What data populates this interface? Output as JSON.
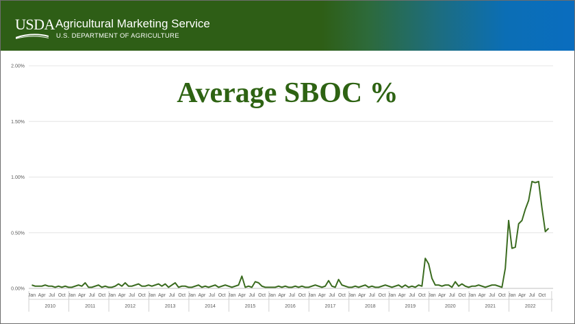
{
  "header": {
    "logo_text": "USDA",
    "agency": "Agricultural Marketing Service",
    "department": "U.S. DEPARTMENT OF AGRICULTURE"
  },
  "colors": {
    "brand_green": "#2e5e16",
    "brand_blue": "#0a6dbf",
    "line": "#3a6b1f",
    "title": "#2e6313"
  },
  "chart_data": {
    "type": "line",
    "title": "Average SBOC %",
    "xlabel": "",
    "ylabel": "",
    "ylim": [
      0,
      0.02
    ],
    "yticks": [
      "0.00%",
      "0.50%",
      "1.00%",
      "1.50%",
      "2.00%"
    ],
    "grid": true,
    "legend": "none",
    "month_ticks": [
      "Jan",
      "Apr",
      "Jul",
      "Oct"
    ],
    "years": [
      "2010",
      "2011",
      "2012",
      "2013",
      "2014",
      "2015",
      "2016",
      "2017",
      "2018",
      "2019",
      "2020",
      "2021",
      "2022"
    ],
    "series": [
      {
        "values": [
          0.0003,
          0.0002,
          0.0002,
          0.0002,
          0.0003,
          0.0002,
          0.0002,
          0.0001,
          0.0002,
          0.0001,
          0.0002,
          0.0001,
          0.0001,
          0.0002,
          0.0003,
          0.0002,
          0.0005,
          0.0001,
          0.0001,
          0.0002,
          0.0003,
          0.0001,
          0.0002,
          0.0001,
          0.0001,
          0.0002,
          0.0004,
          0.0002,
          0.0005,
          0.0002,
          0.0002,
          0.0003,
          0.0004,
          0.0002,
          0.0002,
          0.0003,
          0.0002,
          0.0003,
          0.0004,
          0.0002,
          0.0004,
          0.0001,
          0.0003,
          0.0005,
          0.0001,
          0.0002,
          0.0002,
          0.0001,
          0.0001,
          0.0002,
          0.0003,
          0.0001,
          0.0002,
          0.0001,
          0.0002,
          0.0003,
          0.0001,
          0.0002,
          0.0003,
          0.0002,
          0.0001,
          0.0002,
          0.0003,
          0.0011,
          0.0001,
          0.0002,
          0.0001,
          0.0006,
          0.0005,
          0.0002,
          0.0001,
          0.0001,
          0.0001,
          0.0001,
          0.0002,
          0.0001,
          0.0002,
          0.0001,
          0.0001,
          0.0002,
          0.0001,
          0.0002,
          0.0001,
          0.0001,
          0.0002,
          0.0003,
          0.0002,
          0.0001,
          0.0002,
          0.0007,
          0.0002,
          0.0001,
          0.0008,
          0.0003,
          0.0002,
          0.0001,
          0.0001,
          0.0002,
          0.0001,
          0.0002,
          0.0003,
          0.0001,
          0.0002,
          0.0001,
          0.0001,
          0.0002,
          0.0003,
          0.0002,
          0.0001,
          0.0002,
          0.0003,
          0.0001,
          0.0003,
          0.0001,
          0.0002,
          0.0001,
          0.0003,
          0.0002,
          0.0027,
          0.0022,
          0.0009,
          0.0003,
          0.0003,
          0.0002,
          0.0003,
          0.0003,
          0.0001,
          0.0006,
          0.0002,
          0.0004,
          0.0002,
          0.0001,
          0.0002,
          0.0002,
          0.0003,
          0.0002,
          0.0001,
          0.0002,
          0.0003,
          0.0003,
          0.0002,
          0.0001,
          0.0018,
          0.0061,
          0.0036,
          0.0037,
          0.0058,
          0.0061,
          0.0071,
          0.0079,
          0.0096,
          0.0095,
          0.0096,
          0.0072,
          0.0051,
          0.0054
        ]
      }
    ]
  }
}
